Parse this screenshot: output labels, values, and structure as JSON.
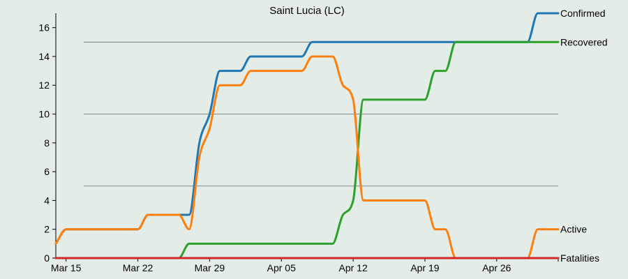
{
  "chart_data": {
    "type": "line",
    "title": "Saint Lucia (LC)",
    "xlabel": "",
    "ylabel": "",
    "x": [
      "2020-03-14",
      "2020-03-15",
      "2020-03-16",
      "2020-03-17",
      "2020-03-18",
      "2020-03-19",
      "2020-03-20",
      "2020-03-21",
      "2020-03-22",
      "2020-03-23",
      "2020-03-24",
      "2020-03-25",
      "2020-03-26",
      "2020-03-27",
      "2020-03-28",
      "2020-03-29",
      "2020-03-30",
      "2020-03-31",
      "2020-04-01",
      "2020-04-02",
      "2020-04-03",
      "2020-04-04",
      "2020-04-05",
      "2020-04-06",
      "2020-04-07",
      "2020-04-08",
      "2020-04-09",
      "2020-04-10",
      "2020-04-11",
      "2020-04-12",
      "2020-04-13",
      "2020-04-14",
      "2020-04-15",
      "2020-04-16",
      "2020-04-17",
      "2020-04-18",
      "2020-04-19",
      "2020-04-20",
      "2020-04-21",
      "2020-04-22",
      "2020-04-23",
      "2020-04-24",
      "2020-04-25",
      "2020-04-26",
      "2020-04-27",
      "2020-04-28",
      "2020-04-29",
      "2020-04-30",
      "2020-05-01",
      "2020-05-02"
    ],
    "x_ticks": [
      "Mar 15",
      "Mar 22",
      "Mar 29",
      "Apr 05",
      "Apr 12",
      "Apr 19",
      "Apr 26"
    ],
    "x_tick_dates": [
      "2020-03-15",
      "2020-03-22",
      "2020-03-29",
      "2020-04-05",
      "2020-04-12",
      "2020-04-19",
      "2020-04-26"
    ],
    "ylim": [
      0,
      17
    ],
    "y_ticks": [
      0,
      2,
      4,
      6,
      8,
      10,
      12,
      14,
      16
    ],
    "gridlines_y": [
      5,
      10,
      15
    ],
    "series": [
      {
        "name": "Confirmed",
        "color": "#1f77b4",
        "values": [
          1,
          2,
          2,
          2,
          2,
          2,
          2,
          2,
          2,
          3,
          3,
          3,
          3,
          3,
          8,
          10,
          13,
          13,
          13,
          14,
          14,
          14,
          14,
          14,
          14,
          15,
          15,
          15,
          15,
          15,
          15,
          15,
          15,
          15,
          15,
          15,
          15,
          15,
          15,
          15,
          15,
          15,
          15,
          15,
          15,
          15,
          15,
          17,
          17,
          17
        ]
      },
      {
        "name": "Recovered",
        "color": "#2ca02c",
        "values": [
          0,
          0,
          0,
          0,
          0,
          0,
          0,
          0,
          0,
          0,
          0,
          0,
          0,
          1,
          1,
          1,
          1,
          1,
          1,
          1,
          1,
          1,
          1,
          1,
          1,
          1,
          1,
          1,
          3,
          4,
          11,
          11,
          11,
          11,
          11,
          11,
          11,
          13,
          13,
          15,
          15,
          15,
          15,
          15,
          15,
          15,
          15,
          15,
          15,
          15
        ]
      },
      {
        "name": "Active",
        "color": "#ff7f0e",
        "values": [
          1,
          2,
          2,
          2,
          2,
          2,
          2,
          2,
          2,
          3,
          3,
          3,
          3,
          2,
          7,
          9,
          12,
          12,
          12,
          13,
          13,
          13,
          13,
          13,
          13,
          14,
          14,
          14,
          12,
          11,
          4,
          4,
          4,
          4,
          4,
          4,
          4,
          2,
          2,
          0,
          0,
          0,
          0,
          0,
          0,
          0,
          0,
          2,
          2,
          2
        ]
      },
      {
        "name": "Fatalities",
        "color": "#d62728",
        "values": [
          0,
          0,
          0,
          0,
          0,
          0,
          0,
          0,
          0,
          0,
          0,
          0,
          0,
          0,
          0,
          0,
          0,
          0,
          0,
          0,
          0,
          0,
          0,
          0,
          0,
          0,
          0,
          0,
          0,
          0,
          0,
          0,
          0,
          0,
          0,
          0,
          0,
          0,
          0,
          0,
          0,
          0,
          0,
          0,
          0,
          0,
          0,
          0,
          0,
          0
        ]
      }
    ],
    "series_label_placement": "right end of each line",
    "grid": true,
    "legend": "none"
  }
}
